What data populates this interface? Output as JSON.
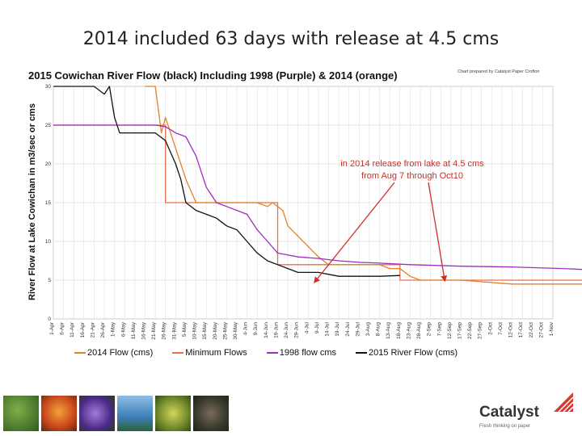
{
  "slide_title": "2014 included 63 days with release at 4.5 cms",
  "chart_data": {
    "type": "line",
    "title": "2015 Cowichan River Flow (black)  Including 1998 (Purple) & 2014 (orange)",
    "credit": "Chart prepared by Catalyst Paper Crofton",
    "ylabel": "River Flow at Lake Cowichan in m3/sec or cms",
    "xlabel": "",
    "ylim": [
      0,
      30
    ],
    "yticks": [
      "0",
      "5",
      "10",
      "15",
      "20",
      "25",
      "30"
    ],
    "x_tick_labels": [
      "1-Apr",
      "6-Apr",
      "11-Apr",
      "16-Apr",
      "21-Apr",
      "26-Apr",
      "1-May",
      "6-May",
      "11-May",
      "16-May",
      "21-May",
      "26-May",
      "31-May",
      "5-May",
      "10-May",
      "15-May",
      "20-May",
      "25-May",
      "30-May",
      "4-Jun",
      "9-Jun",
      "14-Jun",
      "19-Jun",
      "24-Jun",
      "29-Jun",
      "4-Jul",
      "9-Jul",
      "14-Jul",
      "19-Jul",
      "24-Jul",
      "29-Jul",
      "3-Aug",
      "8-Aug",
      "13-Aug",
      "18-Aug",
      "23-Aug",
      "28-Aug",
      "2-Sep",
      "7-Sep",
      "12-Sep",
      "17-Sep",
      "22-Sep",
      "27-Sep",
      "2-Oct",
      "7-Oct",
      "12-Oct",
      "17-Oct",
      "22-Oct",
      "27-Oct",
      "1-Nov"
    ],
    "colors": {
      "2014": "#e0832a",
      "minimum": "#e8704a",
      "1998": "#9b2fbf",
      "2015": "#111111",
      "annotation": "#c8312a"
    },
    "series": [
      {
        "name": "2014 Flow (cms)",
        "color": "#e0832a",
        "x": [
          0,
          8.5,
          9,
          10,
          10.6,
          11,
          11.5,
          12,
          13,
          14,
          14.5,
          16,
          17,
          17.5,
          18,
          19,
          20,
          21,
          21.5,
          22.5,
          23,
          26,
          27,
          28,
          29,
          31,
          32,
          33,
          34,
          35,
          36,
          40,
          45,
          50,
          55,
          58,
          60,
          61,
          62,
          63,
          63.5,
          64,
          64.5,
          65,
          65.5
        ],
        "y": [
          null,
          null,
          30,
          30,
          24,
          26,
          24,
          22,
          18,
          15,
          15,
          15,
          15,
          15,
          15,
          15,
          15,
          14.5,
          15,
          14,
          12,
          8,
          7,
          7,
          7,
          7,
          7,
          6.5,
          6.5,
          5.5,
          5,
          5,
          4.5,
          4.5,
          4.5,
          4.5,
          4.5,
          4.3,
          4.5,
          4.5,
          5,
          7,
          12,
          20,
          30
        ]
      },
      {
        "name": "Minimum Flows",
        "color": "#e8704a",
        "x": [
          0,
          11,
          11,
          22,
          22,
          25,
          25,
          34,
          34,
          60,
          60,
          61.5,
          61.5,
          64,
          64
        ],
        "y": [
          25,
          25,
          15,
          15,
          7,
          7,
          7,
          7,
          5,
          5,
          5,
          5,
          7,
          7,
          30
        ]
      },
      {
        "name": "1998 flow cms",
        "color": "#9b2fbf",
        "x": [
          0,
          10,
          11,
          12,
          13,
          14,
          15,
          16,
          17,
          18,
          19,
          20,
          21,
          22,
          24,
          26,
          28,
          30,
          32,
          35,
          40,
          45,
          50,
          55,
          58,
          59,
          60,
          61,
          62,
          62.5,
          63,
          63.5,
          64,
          65,
          66,
          67,
          68
        ],
        "y": [
          25,
          25,
          24.8,
          24,
          23.5,
          21,
          17,
          15,
          14.5,
          14,
          13.5,
          11.5,
          10,
          8.5,
          8,
          7.8,
          7.5,
          7.3,
          7.2,
          7,
          6.8,
          6.7,
          6.5,
          6.2,
          6,
          6.2,
          6,
          6.5,
          7.5,
          8,
          12,
          15,
          16,
          15.5,
          14.5,
          13.5,
          13
        ]
      },
      {
        "name": "2015 River Flow (cms)",
        "color": "#111111",
        "x": [
          0,
          4,
          5,
          5.5,
          6,
          6.5,
          7,
          9,
          10,
          11,
          12,
          12.5,
          13,
          14,
          15,
          16,
          17,
          18,
          19,
          20,
          21,
          22,
          23,
          24,
          26,
          28,
          30,
          32,
          34
        ],
        "y": [
          30,
          30,
          29,
          30,
          26,
          24,
          24,
          24,
          24,
          23,
          20,
          18,
          15,
          14,
          13.5,
          13,
          12,
          11.5,
          10,
          8.5,
          7.5,
          7,
          6.5,
          6,
          6,
          5.5,
          5.5,
          5.5,
          5.6
        ]
      }
    ],
    "legend": [
      "2014 Flow (cms)",
      "Minimum Flows",
      "1998 flow cms",
      "2015 River Flow (cms)"
    ],
    "legend_position": "bottom",
    "grid": true,
    "annotation": {
      "line1": "in 2014 release from lake at 4.5 cms",
      "line2": "from Aug 7 through Oct10"
    }
  },
  "footer": {
    "brand_name": "Catalyst",
    "brand_tagline": "Fresh thinking on paper",
    "photos": [
      "green-foliage-photo",
      "orange-flower-photo",
      "purple-flower-photo",
      "blue-sky-photo",
      "yellow-leaves-photo",
      "dark-leaves-photo"
    ]
  }
}
